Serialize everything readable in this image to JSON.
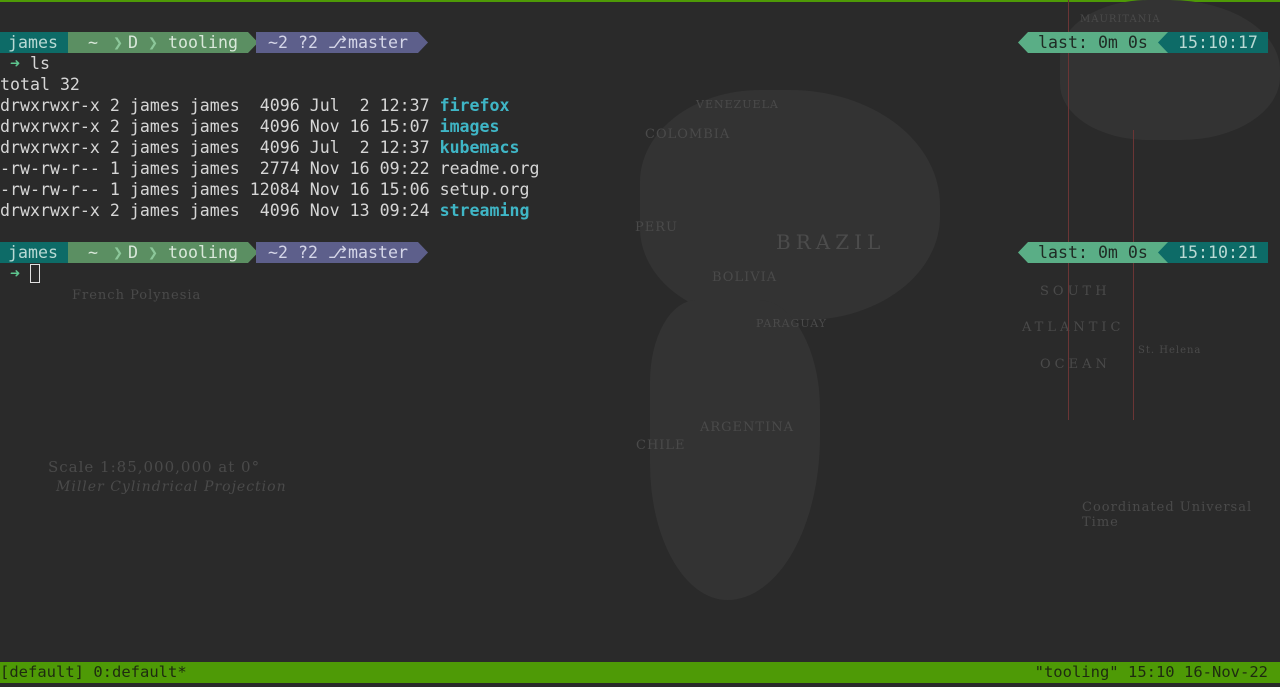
{
  "map_labels": [
    "BRAZIL",
    "COLOMBIA",
    "PERU",
    "BOLIVIA",
    "ARGENTINA",
    "CHILE",
    "PARAGUAY",
    "VENEZUELA",
    "SOUTH",
    "ATLANTIC",
    "OCEAN",
    "French Polynesia",
    "Scale 1:85,000,000 at 0°",
    "Miller Cylindrical Projection",
    "Coordinated Universal Time",
    "MAURITANIA",
    "St. Helena"
  ],
  "prompts": [
    {
      "user": "james",
      "home": "~",
      "dir1": "D",
      "dir2": "tooling",
      "git_status": "~2 ?2",
      "branch_icon": "git-branch-icon",
      "branch": "master",
      "last": "last: 0m 0s",
      "time": "15:10:17",
      "arrow": "➜",
      "command": "ls"
    },
    {
      "user": "james",
      "home": "~",
      "dir1": "D",
      "dir2": "tooling",
      "git_status": "~2 ?2",
      "branch_icon": "git-branch-icon",
      "branch": "master",
      "last": "last: 0m 0s",
      "time": "15:10:21",
      "arrow": "➜",
      "command": ""
    }
  ],
  "ls_total": "total 32",
  "ls_entries": [
    {
      "meta": "drwxrwxr-x 2 james james  4096 Jul  2 12:37 ",
      "name": "firefox",
      "dir": true
    },
    {
      "meta": "drwxrwxr-x 2 james james  4096 Nov 16 15:07 ",
      "name": "images",
      "dir": true
    },
    {
      "meta": "drwxrwxr-x 2 james james  4096 Jul  2 12:37 ",
      "name": "kubemacs",
      "dir": true
    },
    {
      "meta": "-rw-rw-r-- 1 james james  2774 Nov 16 09:22 ",
      "name": "readme.org",
      "dir": false
    },
    {
      "meta": "-rw-rw-r-- 1 james james 12084 Nov 16 15:06 ",
      "name": "setup.org",
      "dir": false
    },
    {
      "meta": "drwxrwxr-x 2 james james  4096 Nov 13 09:24 ",
      "name": "streaming",
      "dir": true
    }
  ],
  "tmux": {
    "session": "[default]",
    "window": "0:default*",
    "title": "\"tooling\"",
    "time": "15:10",
    "date": "16-Nov-22"
  },
  "colors": {
    "status_bar": "#4e9a06",
    "dir": "#3fb6c6",
    "user_seg": "#0d6b67",
    "path_seg": "#5b8f62",
    "git_seg": "#5d5f8b",
    "last_seg": "#5aae86"
  }
}
